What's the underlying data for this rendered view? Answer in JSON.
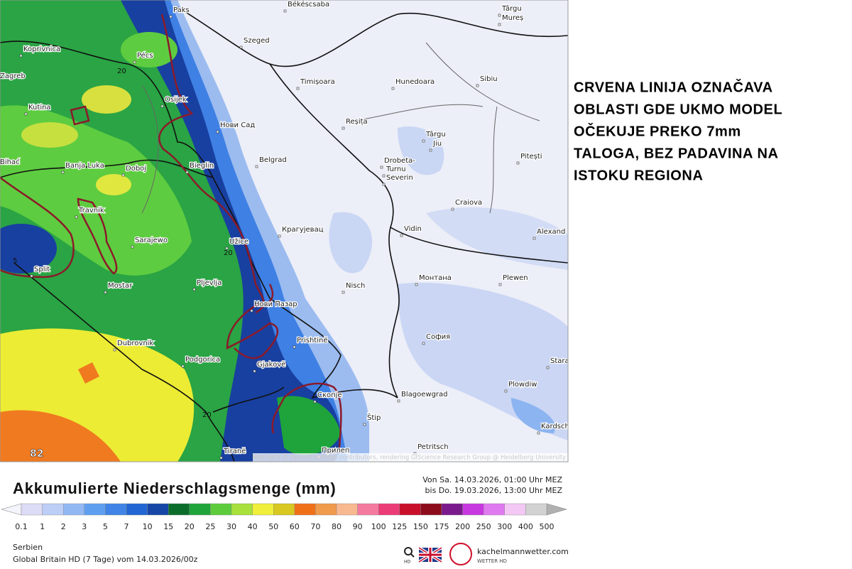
{
  "annotation": {
    "lines": [
      "CRVENA LINIJA OZNAČAVA",
      "OBLASTI GDE UKMO MODEL",
      "OČEKUJE PREKO 7mm",
      "TALOGA, BEZ PADAVINA NA",
      "ISTOKU REGIONA"
    ]
  },
  "map": {
    "places": [
      "Paks",
      "Békéscsaba",
      "Târgu",
      "Mureș",
      "Koprivnica",
      "Pécs",
      "Szeged",
      "Zagreb",
      "Osijek",
      "Timișoara",
      "Hunedoara",
      "Sibiu",
      "Kutina",
      "Нови Сад",
      "Reșița",
      "Târgu",
      "Jiu",
      "Pitești",
      "Bihać",
      "Banja Luka",
      "Doboj",
      "Bieglin",
      "Belgrad",
      "Drobeta-",
      "Turnu",
      "Severin",
      "Craiova",
      "Travnik",
      "Крагујевац",
      "Vidin",
      "Alexand",
      "Sarajewo",
      "Užice",
      "Split",
      "Монтана",
      "Plewen",
      "Mostar",
      "Pljevlja",
      "Nisch",
      "Нови Пазар",
      "София",
      "Prishtinë",
      "Dubrovnik",
      "Podgorica",
      "Gjakovë",
      "Stara",
      "Blagoewgrad",
      "Скопје",
      "Plowdiw",
      "Štip",
      "Kardsch",
      "Tiranë",
      "Прилеп",
      "Petritsch"
    ],
    "contour_labels": [
      "20",
      "20",
      "20",
      "5"
    ],
    "corner_value": "82",
    "attribution": "Map data © OpenStreetMap contributors, rendering GIScience Research Group @ Heidelberg University"
  },
  "legend": {
    "title": "Akkumulierte Niederschlagsmenge (mm)",
    "from": "Von Sa. 14.03.2026, 01:00 Uhr MEZ",
    "to": "bis Do. 19.03.2026, 13:00 Uhr MEZ",
    "levels": [
      0.1,
      1,
      2,
      3,
      5,
      7,
      10,
      15,
      20,
      25,
      30,
      40,
      50,
      60,
      70,
      80,
      90,
      100,
      125,
      150,
      175,
      200,
      250,
      300,
      400,
      500
    ],
    "colors": [
      "#dcdcf6",
      "#bccdf6",
      "#92b8f4",
      "#5f9ff0",
      "#3f84e6",
      "#2266d4",
      "#1646a6",
      "#0a6e2a",
      "#1ea43a",
      "#5ccc3c",
      "#a8e03c",
      "#f0f03c",
      "#d8c820",
      "#f07018",
      "#f09a4c",
      "#f8b890",
      "#f47aa0",
      "#ec3c78",
      "#c8102a",
      "#8c0c1c",
      "#7a1a8c",
      "#c838e0",
      "#e07af0",
      "#f4c8f4",
      "#d2d2d2"
    ]
  },
  "footer": {
    "region": "Serbien",
    "model": "Global Britain HD (7 Tage) vom  14.03.2026/00z",
    "brand": "kachelmannwetter.com",
    "brand_sub": "WETTER HD",
    "logo": "k.",
    "search": "HD"
  }
}
